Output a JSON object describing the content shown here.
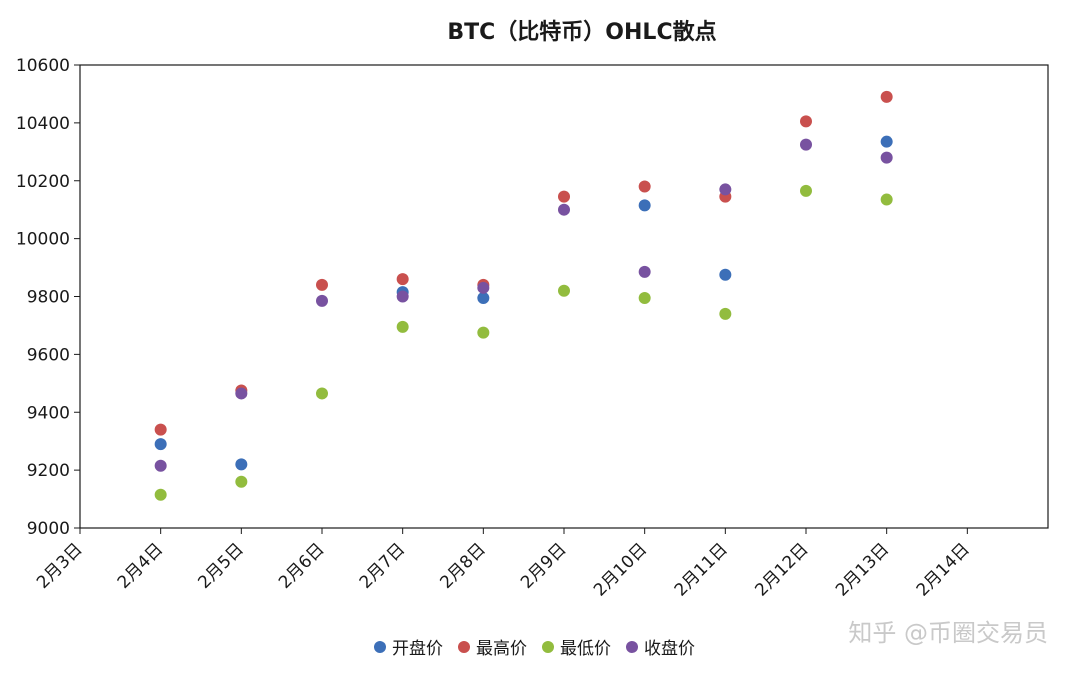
{
  "chart_data": {
    "type": "scatter",
    "title": "BTC（比特币）OHLC散点",
    "xlabel": "",
    "ylabel": "",
    "x_ticks": [
      "2月3日",
      "2月4日",
      "2月5日",
      "2月6日",
      "2月7日",
      "2月8日",
      "2月9日",
      "2月10日",
      "2月11日",
      "2月12日",
      "2月13日",
      "2月14日"
    ],
    "categories": [
      "2月4日",
      "2月5日",
      "2月6日",
      "2月7日",
      "2月8日",
      "2月9日",
      "2月10日",
      "2月11日",
      "2月12日",
      "2月13日"
    ],
    "ylim": [
      9000,
      10600
    ],
    "y_ticks": [
      9000,
      9200,
      9400,
      9600,
      9800,
      10000,
      10200,
      10400,
      10600
    ],
    "grid": false,
    "legend_position": "bottom",
    "series": [
      {
        "name": "开盘价",
        "color": "#3c6fb8",
        "values": [
          9290,
          9220,
          null,
          9815,
          9795,
          null,
          10115,
          9875,
          null,
          10335
        ]
      },
      {
        "name": "最高价",
        "color": "#c9504e",
        "values": [
          9340,
          9475,
          9840,
          9860,
          9840,
          10145,
          10180,
          10145,
          10405,
          10490
        ]
      },
      {
        "name": "最低价",
        "color": "#92bc3e",
        "values": [
          9115,
          9160,
          9465,
          9695,
          9675,
          9820,
          9795,
          9740,
          10165,
          10135
        ]
      },
      {
        "name": "收盘价",
        "color": "#7852a0",
        "values": [
          9215,
          9465,
          9785,
          9800,
          9830,
          10100,
          9885,
          10170,
          10325,
          10280
        ]
      }
    ]
  },
  "watermark": "知乎 @币圈交易员"
}
